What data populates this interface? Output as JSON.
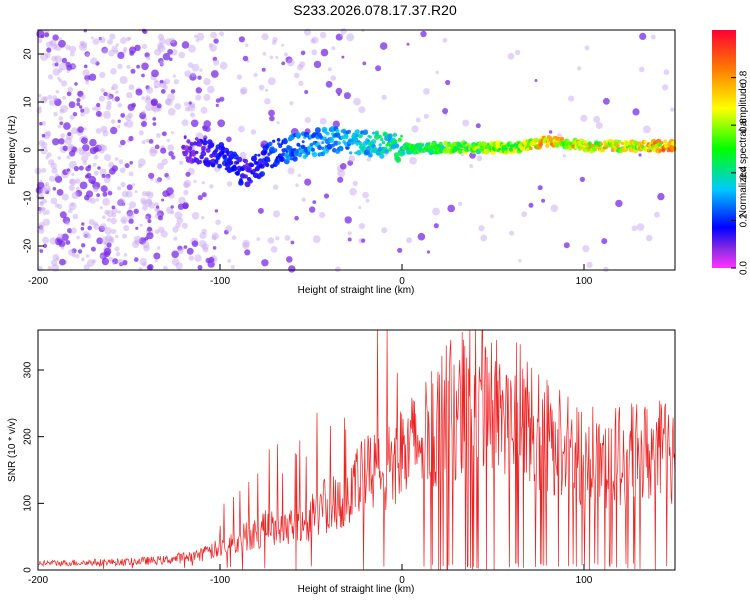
{
  "title": "S233.2026.078.17.37.R20",
  "chart_data": [
    {
      "type": "scatter",
      "subtype": "spectrogram",
      "xlabel": "Height of straight line (km)",
      "ylabel": "Frequency (Hz)",
      "xlim": [
        -200,
        150
      ],
      "ylim": [
        -25,
        25
      ],
      "x_ticks": [
        -200,
        -100,
        0,
        100
      ],
      "x_tick_labels": [
        "-200",
        "-100",
        "0",
        "100"
      ],
      "y_ticks": [
        -20,
        -10,
        0,
        10,
        20
      ],
      "y_tick_labels": [
        "-20",
        "-10",
        "0",
        "10",
        "20"
      ],
      "ridge": {
        "description": "dominant carrier trace",
        "x": [
          -120,
          -100,
          -90,
          -85,
          -70,
          -50,
          -30,
          -10,
          0,
          20,
          60,
          80,
          100,
          130,
          150
        ],
        "y": [
          0.5,
          -1,
          -4,
          -5,
          -0.5,
          1.5,
          2,
          1,
          0.3,
          0.5,
          0.5,
          1.8,
          0.8,
          0.8,
          0.8
        ],
        "amplitude": [
          0.1,
          0.2,
          0.2,
          0.15,
          0.25,
          0.35,
          0.35,
          0.45,
          0.5,
          0.6,
          0.7,
          0.85,
          0.8,
          0.75,
          0.95
        ]
      },
      "colorbar": {
        "label": "Normalized spectral amplitude",
        "ticks": [
          0.0,
          0.2,
          0.4,
          0.6,
          0.8
        ],
        "tick_labels": [
          "0.0",
          "0.2",
          "0.4",
          "0.6",
          "0.8"
        ],
        "range": [
          0,
          1
        ]
      }
    },
    {
      "type": "line",
      "xlabel": "Height of straight line (km)",
      "ylabel": "SNR (10 * v/v)",
      "xlim": [
        -200,
        150
      ],
      "ylim": [
        0,
        360
      ],
      "x_ticks": [
        -200,
        -100,
        0,
        100
      ],
      "x_tick_labels": [
        "-200",
        "-100",
        "0",
        "100"
      ],
      "y_ticks": [
        0,
        100,
        200,
        300
      ],
      "y_tick_labels": [
        "0",
        "100",
        "200",
        "300"
      ],
      "series": [
        {
          "name": "SNR",
          "color": "#ee2222",
          "envelope_x": [
            -200,
            -150,
            -130,
            -110,
            -100,
            -90,
            -80,
            -70,
            -60,
            -50,
            -40,
            -30,
            -20,
            -10,
            0,
            10,
            20,
            30,
            40,
            50,
            60,
            70,
            80,
            90,
            100,
            110,
            120,
            130,
            150
          ],
          "envelope_y": [
            12,
            15,
            18,
            28,
            40,
            55,
            70,
            80,
            85,
            95,
            120,
            140,
            170,
            180,
            200,
            240,
            270,
            300,
            310,
            310,
            300,
            270,
            245,
            225,
            210,
            200,
            205,
            210,
            215
          ]
        }
      ]
    }
  ]
}
